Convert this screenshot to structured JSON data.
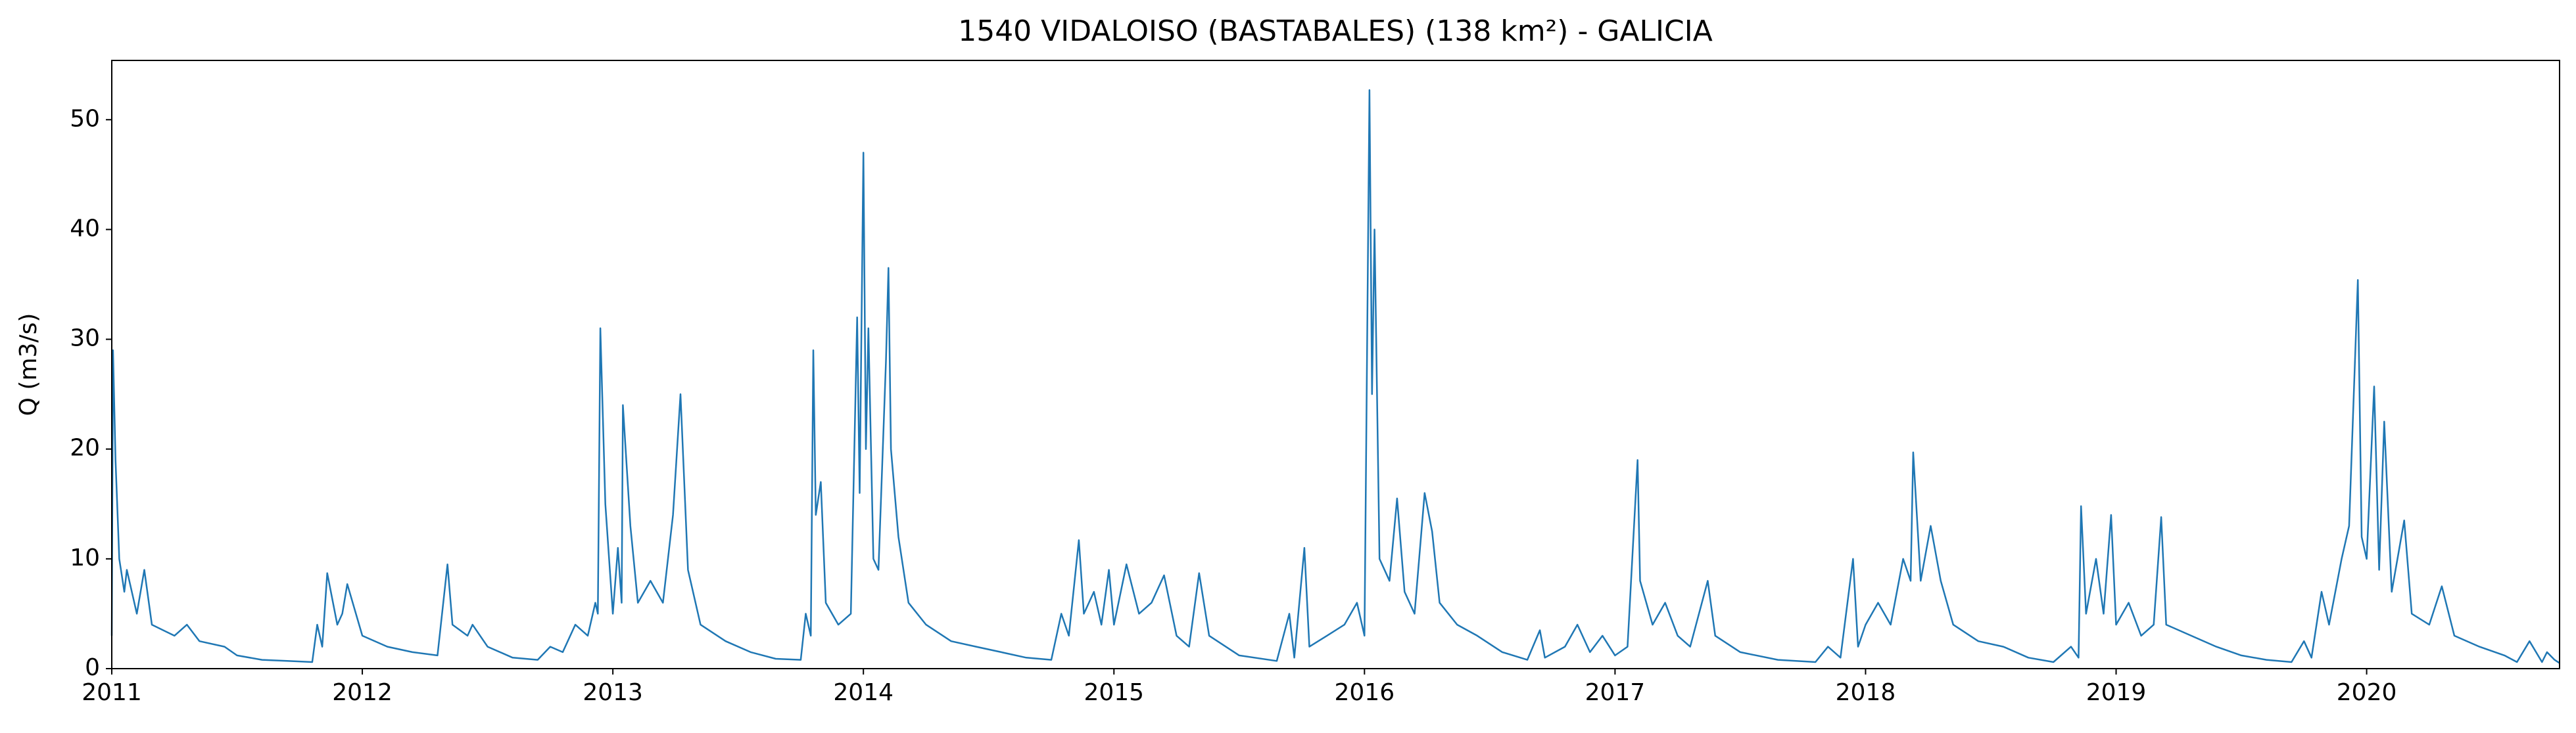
{
  "chart_data": {
    "type": "line",
    "title": "1540 VIDALOISO (BASTABALES) (138 km²) - GALICIA",
    "y_label": "Q (m3/s)",
    "color": "#1f77b4",
    "xlim": [
      2011,
      2020.77
    ],
    "xticks": [
      2011,
      2012,
      2013,
      2014,
      2015,
      2016,
      2017,
      2018,
      2019,
      2020
    ],
    "ylim": [
      0,
      55.4
    ],
    "yticks": [
      0,
      10,
      20,
      30,
      40,
      50
    ],
    "grid": false,
    "x": [
      2011.0,
      2011.005,
      2011.015,
      2011.03,
      2011.05,
      2011.06,
      2011.1,
      2011.13,
      2011.16,
      2011.25,
      2011.3,
      2011.35,
      2011.45,
      2011.5,
      2011.6,
      2011.7,
      2011.8,
      2011.82,
      2011.84,
      2011.86,
      2011.9,
      2011.92,
      2011.94,
      2012.0,
      2012.1,
      2012.2,
      2012.3,
      2012.34,
      2012.36,
      2012.42,
      2012.44,
      2012.5,
      2012.6,
      2012.7,
      2012.75,
      2012.8,
      2012.85,
      2012.9,
      2012.93,
      2012.94,
      2012.95,
      2012.97,
      2013.0,
      2013.02,
      2013.035,
      2013.04,
      2013.07,
      2013.1,
      2013.15,
      2013.2,
      2013.24,
      2013.27,
      2013.3,
      2013.35,
      2013.45,
      2013.55,
      2013.65,
      2013.75,
      2013.77,
      2013.79,
      2013.8,
      2013.81,
      2013.83,
      2013.85,
      2013.9,
      2013.95,
      2013.975,
      2013.985,
      2014.0,
      2014.01,
      2014.02,
      2014.04,
      2014.06,
      2014.09,
      2014.1,
      2014.11,
      2014.14,
      2014.18,
      2014.25,
      2014.35,
      2014.45,
      2014.55,
      2014.65,
      2014.75,
      2014.79,
      2014.82,
      2014.86,
      2014.88,
      2014.92,
      2014.95,
      2014.98,
      2015.0,
      2015.05,
      2015.1,
      2015.15,
      2015.2,
      2015.25,
      2015.3,
      2015.34,
      2015.38,
      2015.5,
      2015.65,
      2015.7,
      2015.72,
      2015.76,
      2015.78,
      2015.85,
      2015.92,
      2015.97,
      2016.0,
      2016.02,
      2016.03,
      2016.04,
      2016.06,
      2016.1,
      2016.13,
      2016.16,
      2016.2,
      2016.24,
      2016.27,
      2016.3,
      2016.37,
      2016.45,
      2016.55,
      2016.65,
      2016.7,
      2016.72,
      2016.8,
      2016.85,
      2016.9,
      2016.95,
      2017.0,
      2017.05,
      2017.09,
      2017.1,
      2017.15,
      2017.2,
      2017.25,
      2017.3,
      2017.37,
      2017.4,
      2017.5,
      2017.65,
      2017.8,
      2017.85,
      2017.9,
      2017.95,
      2017.97,
      2018.0,
      2018.05,
      2018.1,
      2018.15,
      2018.18,
      2018.19,
      2018.22,
      2018.26,
      2018.3,
      2018.35,
      2018.45,
      2018.55,
      2018.65,
      2018.75,
      2018.82,
      2018.85,
      2018.86,
      2018.88,
      2018.92,
      2018.95,
      2018.98,
      2019.0,
      2019.05,
      2019.1,
      2019.15,
      2019.18,
      2019.2,
      2019.3,
      2019.4,
      2019.5,
      2019.6,
      2019.7,
      2019.75,
      2019.78,
      2019.82,
      2019.85,
      2019.9,
      2019.93,
      2019.965,
      2019.98,
      2020.0,
      2020.03,
      2020.05,
      2020.07,
      2020.1,
      2020.15,
      2020.18,
      2020.25,
      2020.3,
      2020.35,
      2020.45,
      2020.55,
      2020.6,
      2020.65,
      2020.7,
      2020.72,
      2020.75,
      2020.77
    ],
    "values": [
      3,
      29,
      19,
      10,
      7,
      9,
      5,
      9,
      4,
      3,
      4,
      2.5,
      2,
      1.2,
      0.8,
      0.7,
      0.6,
      4,
      2,
      8.7,
      4,
      5,
      7.7,
      3,
      2,
      1.5,
      1.2,
      9.5,
      4,
      3,
      4,
      2,
      1,
      0.8,
      2,
      1.5,
      4,
      3,
      6,
      5,
      31,
      15,
      5,
      11,
      6,
      24,
      13,
      6,
      8,
      6,
      14,
      25,
      9,
      4,
      2.5,
      1.5,
      0.9,
      0.8,
      5,
      3,
      29,
      14,
      17,
      6,
      4,
      5,
      32,
      16,
      47,
      20,
      31,
      10,
      9,
      28,
      36.5,
      20,
      12,
      6,
      4,
      2.5,
      2,
      1.5,
      1,
      0.8,
      5,
      3,
      11.7,
      5,
      7,
      4,
      9,
      4,
      9.5,
      5,
      6,
      8.5,
      3,
      2,
      8.7,
      3,
      1.2,
      0.7,
      5,
      1,
      11,
      2,
      3,
      4,
      6,
      3,
      52.7,
      25,
      40,
      10,
      8,
      15.5,
      7,
      5,
      16,
      12.5,
      6,
      4,
      3,
      1.5,
      0.8,
      3.5,
      1,
      2,
      4,
      1.5,
      3,
      1.2,
      2,
      19,
      8,
      4,
      6,
      3,
      2,
      8,
      3,
      1.5,
      0.8,
      0.6,
      2,
      1,
      10,
      2,
      4,
      6,
      4,
      10,
      8,
      19.7,
      8,
      13,
      8,
      4,
      2.5,
      2,
      1,
      0.6,
      2,
      1,
      14.8,
      5,
      10,
      5,
      14,
      4,
      6,
      3,
      4,
      13.8,
      4,
      3,
      2,
      1.2,
      0.8,
      0.6,
      2.5,
      1,
      7,
      4,
      10,
      13,
      35.4,
      12,
      10,
      25.7,
      9,
      22.5,
      7,
      13.5,
      5,
      4,
      7.5,
      3,
      2,
      1.2,
      0.6,
      2.5,
      0.6,
      1.5,
      0.8,
      0.5
    ]
  }
}
